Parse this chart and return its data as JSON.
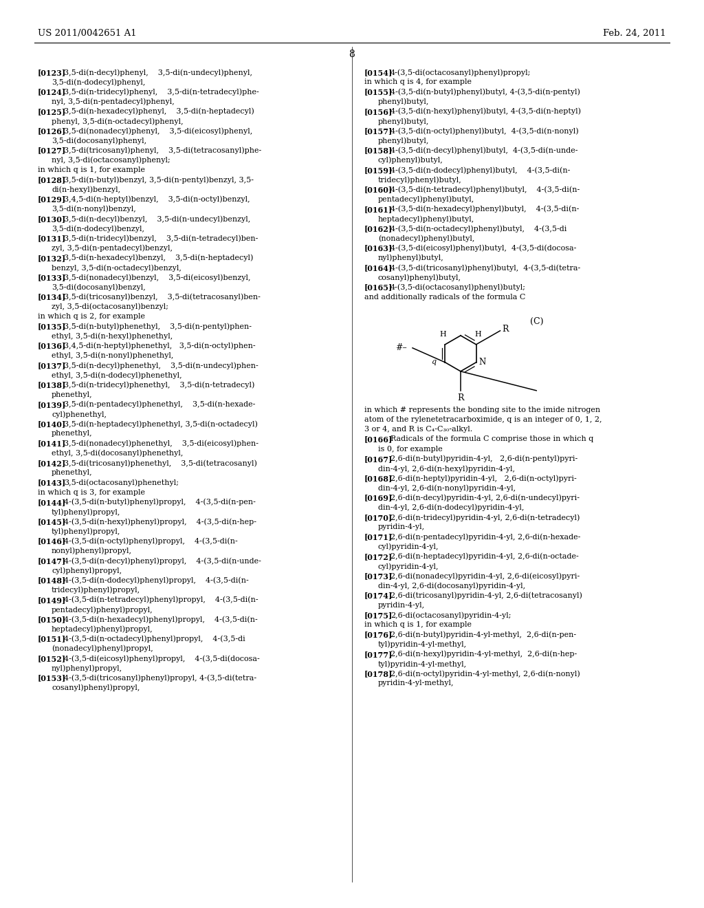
{
  "header_left": "US 2011/0042651 A1",
  "header_right": "Feb. 24, 2011",
  "page_number": "8",
  "background_color": "#ffffff",
  "text_color": "#000000",
  "left_col": [
    {
      "tag": "[0123]",
      "lines": [
        "3,5-di(n-decyl)phenyl,    3,5-di(n-undecyl)phenyl,",
        "3,5-di(n-dodecyl)phenyl,"
      ]
    },
    {
      "tag": "[0124]",
      "lines": [
        "3,5-di(n-tridecyl)phenyl,    3,5-di(n-tetradecyl)phe-",
        "nyl, 3,5-di(n-pentadecyl)phenyl,"
      ]
    },
    {
      "tag": "[0125]",
      "lines": [
        "3,5-di(n-hexadecyl)phenyl,    3,5-di(n-heptadecyl)",
        "phenyl, 3,5-di(n-octadecyl)phenyl,"
      ]
    },
    {
      "tag": "[0126]",
      "lines": [
        "3,5-di(nonadecyl)phenyl,    3,5-di(eicosyl)phenyl,",
        "3,5-di(docosanyl)phenyl,"
      ]
    },
    {
      "tag": "[0127]",
      "lines": [
        "3,5-di(tricosanyl)phenyl,    3,5-di(tetracosanyl)phe-",
        "nyl, 3,5-di(octacosanyl)phenyl;"
      ]
    },
    {
      "tag": "",
      "lines": [
        "in which q is 1, for example"
      ]
    },
    {
      "tag": "[0128]",
      "lines": [
        "3,5-di(n-butyl)benzyl, 3,5-di(n-pentyl)benzyl, 3,5-",
        "di(n-hexyl)benzyl,"
      ]
    },
    {
      "tag": "[0129]",
      "lines": [
        "3,4,5-di(n-heptyl)benzyl,    3,5-di(n-octyl)benzyl,",
        "3,5-di(n-nonyl)benzyl,"
      ]
    },
    {
      "tag": "[0130]",
      "lines": [
        "3,5-di(n-decyl)benzyl,    3,5-di(n-undecyl)benzyl,",
        "3,5-di(n-dodecyl)benzyl,"
      ]
    },
    {
      "tag": "[0131]",
      "lines": [
        "3,5-di(n-tridecyl)benzyl,    3,5-di(n-tetradecyl)ben-",
        "zyl, 3,5-di(n-pentadecyl)benzyl,"
      ]
    },
    {
      "tag": "[0132]",
      "lines": [
        "3,5-di(n-hexadecyl)benzyl,    3,5-di(n-heptadecyl)",
        "benzyl, 3,5-di(n-octadecyl)benzyl,"
      ]
    },
    {
      "tag": "[0133]",
      "lines": [
        "3,5-di(nonadecyl)benzyl,    3,5-di(eicosyl)benzyl,",
        "3,5-di(docosanyl)benzyl,"
      ]
    },
    {
      "tag": "[0134]",
      "lines": [
        "3,5-di(tricosanyl)benzyl,    3,5-di(tetracosanyl)ben-",
        "zyl, 3,5-di(octacosanyl)benzyl;"
      ]
    },
    {
      "tag": "",
      "lines": [
        "in which q is 2, for example"
      ]
    },
    {
      "tag": "[0135]",
      "lines": [
        "3,5-di(n-butyl)phenethyl,    3,5-di(n-pentyl)phen-",
        "ethyl, 3,5-di(n-hexyl)phenethyl,"
      ]
    },
    {
      "tag": "[0136]",
      "lines": [
        "3,4,5-di(n-heptyl)phenethyl,   3,5-di(n-octyl)phen-",
        "ethyl, 3,5-di(n-nonyl)phenethyl,"
      ]
    },
    {
      "tag": "[0137]",
      "lines": [
        "3,5-di(n-decyl)phenethyl,    3,5-di(n-undecyl)phen-",
        "ethyl, 3,5-di(n-dodecyl)phenethyl,"
      ]
    },
    {
      "tag": "[0138]",
      "lines": [
        "3,5-di(n-tridecyl)phenethyl,    3,5-di(n-tetradecyl)",
        "phenethyl,"
      ]
    },
    {
      "tag": "[0139]",
      "lines": [
        "3,5-di(n-pentadecyl)phenethyl,    3,5-di(n-hexade-",
        "cyl)phenethyl,"
      ]
    },
    {
      "tag": "[0140]",
      "lines": [
        "3,5-di(n-heptadecyl)phenethyl, 3,5-di(n-octadecyl)",
        "phenethyl,"
      ]
    },
    {
      "tag": "[0141]",
      "lines": [
        "3,5-di(nonadecyl)phenethyl,    3,5-di(eicosyl)phen-",
        "ethyl, 3,5-di(docosanyl)phenethyl,"
      ]
    },
    {
      "tag": "[0142]",
      "lines": [
        "3,5-di(tricosanyl)phenethyl,    3,5-di(tetracosanyl)",
        "phenethyl,"
      ]
    },
    {
      "tag": "[0143]",
      "lines": [
        "3,5-di(octacosanyl)phenethyl;"
      ]
    },
    {
      "tag": "",
      "lines": [
        "in which q is 3, for example"
      ]
    },
    {
      "tag": "[0144]",
      "lines": [
        "4-(3,5-di(n-butyl)phenyl)propyl,    4-(3,5-di(n-pen-",
        "tyl)phenyl)propyl,"
      ]
    },
    {
      "tag": "[0145]",
      "lines": [
        "4-(3,5-di(n-hexyl)phenyl)propyl,    4-(3,5-di(n-hep-",
        "tyl)phenyl)propyl,"
      ]
    },
    {
      "tag": "[0146]",
      "lines": [
        "4-(3,5-di(n-octyl)phenyl)propyl,    4-(3,5-di(n-",
        "nonyl)phenyl)propyl,"
      ]
    },
    {
      "tag": "[0147]",
      "lines": [
        "4-(3,5-di(n-decyl)phenyl)propyl,    4-(3,5-di(n-unde-",
        "cyl)phenyl)propyl,"
      ]
    },
    {
      "tag": "[0148]",
      "lines": [
        "4-(3,5-di(n-dodecyl)phenyl)propyl,    4-(3,5-di(n-",
        "tridecyl)phenyl)propyl,"
      ]
    },
    {
      "tag": "[0149]",
      "lines": [
        "4-(3,5-di(n-tetradecyl)phenyl)propyl,    4-(3,5-di(n-",
        "pentadecyl)phenyl)propyl,"
      ]
    },
    {
      "tag": "[0150]",
      "lines": [
        "4-(3,5-di(n-hexadecyl)phenyl)propyl,    4-(3,5-di(n-",
        "heptadecyl)phenyl)propyl,"
      ]
    },
    {
      "tag": "[0151]",
      "lines": [
        "4-(3,5-di(n-octadecyl)phenyl)propyl,    4-(3,5-di",
        "(nonadecyl)phenyl)propyl,"
      ]
    },
    {
      "tag": "[0152]",
      "lines": [
        "4-(3,5-di(eicosyl)phenyl)propyl,    4-(3,5-di(docosa-",
        "nyl)phenyl)propyl,"
      ]
    },
    {
      "tag": "[0153]",
      "lines": [
        "4-(3,5-di(tricosanyl)phenyl)propyl, 4-(3,5-di(tetra-",
        "cosanyl)phenyl)propyl,"
      ]
    }
  ],
  "right_col": [
    {
      "tag": "[0154]",
      "lines": [
        "4-(3,5-di(octacosanyl)phenyl)propyl;"
      ]
    },
    {
      "tag": "",
      "lines": [
        "in which q is 4, for example"
      ]
    },
    {
      "tag": "[0155]",
      "lines": [
        "4-(3,5-di(n-butyl)phenyl)butyl, 4-(3,5-di(n-pentyl)",
        "phenyl)butyl,"
      ]
    },
    {
      "tag": "[0156]",
      "lines": [
        "4-(3,5-di(n-hexyl)phenyl)butyl, 4-(3,5-di(n-heptyl)",
        "phenyl)butyl,"
      ]
    },
    {
      "tag": "[0157]",
      "lines": [
        "4-(3,5-di(n-octyl)phenyl)butyl,  4-(3,5-di(n-nonyl)",
        "phenyl)butyl,"
      ]
    },
    {
      "tag": "[0158]",
      "lines": [
        "4-(3,5-di(n-decyl)phenyl)butyl,  4-(3,5-di(n-unde-",
        "cyl)phenyl)butyl,"
      ]
    },
    {
      "tag": "[0159]",
      "lines": [
        "4-(3,5-di(n-dodecyl)phenyl)butyl,    4-(3,5-di(n-",
        "tridecyl)phenyl)butyl,"
      ]
    },
    {
      "tag": "[0160]",
      "lines": [
        "4-(3,5-di(n-tetradecyl)phenyl)butyl,    4-(3,5-di(n-",
        "pentadecyl)phenyl)butyl,"
      ]
    },
    {
      "tag": "[0161]",
      "lines": [
        "4-(3,5-di(n-hexadecyl)phenyl)butyl,    4-(3,5-di(n-",
        "heptadecyl)phenyl)butyl,"
      ]
    },
    {
      "tag": "[0162]",
      "lines": [
        "4-(3,5-di(n-octadecyl)phenyl)butyl,    4-(3,5-di",
        "(nonadecyl)phenyl)butyl,"
      ]
    },
    {
      "tag": "[0163]",
      "lines": [
        "4-(3,5-di(eicosyl)phenyl)butyl,  4-(3,5-di(docosa-",
        "nyl)phenyl)butyl,"
      ]
    },
    {
      "tag": "[0164]",
      "lines": [
        "4-(3,5-di(tricosanyl)phenyl)butyl,  4-(3,5-di(tetra-",
        "cosanyl)phenyl)butyl,"
      ]
    },
    {
      "tag": "[0165]",
      "lines": [
        "4-(3,5-di(octacosanyl)phenyl)butyl;"
      ]
    },
    {
      "tag": "",
      "lines": [
        "and additionally radicals of the formula C"
      ]
    },
    {
      "tag": "FORMULA_C",
      "lines": []
    },
    {
      "tag": "",
      "lines": [
        "in which # represents the bonding site to the imide nitrogen",
        "atom of the rylenetetracarboximide, q is an integer of 0, 1, 2,",
        "3 or 4, and R is C₄-C₃₀-alkyl."
      ]
    },
    {
      "tag": "[0166]",
      "lines": [
        "Radicals of the formula C comprise those in which q",
        "is 0, for example"
      ]
    },
    {
      "tag": "[0167]",
      "lines": [
        "2,6-di(n-butyl)pyridin-4-yl,   2,6-di(n-pentyl)pyri-",
        "din-4-yl, 2,6-di(n-hexyl)pyridin-4-yl,"
      ]
    },
    {
      "tag": "[0168]",
      "lines": [
        "2,6-di(n-heptyl)pyridin-4-yl,   2,6-di(n-octyl)pyri-",
        "din-4-yl, 2,6-di(n-nonyl)pyridin-4-yl,"
      ]
    },
    {
      "tag": "[0169]",
      "lines": [
        "2,6-di(n-decyl)pyridin-4-yl, 2,6-di(n-undecyl)pyri-",
        "din-4-yl, 2,6-di(n-dodecyl)pyridin-4-yl,"
      ]
    },
    {
      "tag": "[0170]",
      "lines": [
        "2,6-di(n-tridecyl)pyridin-4-yl, 2,6-di(n-tetradecyl)",
        "pyridin-4-yl,"
      ]
    },
    {
      "tag": "[0171]",
      "lines": [
        "2,6-di(n-pentadecyl)pyridin-4-yl, 2,6-di(n-hexade-",
        "cyl)pyridin-4-yl,"
      ]
    },
    {
      "tag": "[0172]",
      "lines": [
        "2,6-di(n-heptadecyl)pyridin-4-yl, 2,6-di(n-octade-",
        "cyl)pyridin-4-yl,"
      ]
    },
    {
      "tag": "[0173]",
      "lines": [
        "2,6-di(nonadecyl)pyridin-4-yl, 2,6-di(eicosyl)pyri-",
        "din-4-yl, 2,6-di(docosanyl)pyridin-4-yl,"
      ]
    },
    {
      "tag": "[0174]",
      "lines": [
        "2,6-di(tricosanyl)pyridin-4-yl, 2,6-di(tetracosanyl)",
        "pyridin-4-yl,"
      ]
    },
    {
      "tag": "[0175]",
      "lines": [
        "2,6-di(octacosanyl)pyridin-4-yl;"
      ]
    },
    {
      "tag": "",
      "lines": [
        "in which q is 1, for example"
      ]
    },
    {
      "tag": "[0176]",
      "lines": [
        "2,6-di(n-butyl)pyridin-4-yl-methyl,  2,6-di(n-pen-",
        "tyl)pyridin-4-yl-methyl,"
      ]
    },
    {
      "tag": "[0177]",
      "lines": [
        "2,6-di(n-hexyl)pyridin-4-yl-methyl,  2,6-di(n-hep-",
        "tyl)pyridin-4-yl-methyl,"
      ]
    },
    {
      "tag": "[0178]",
      "lines": [
        "2,6-di(n-octyl)pyridin-4-yl-methyl, 2,6-di(n-nonyl)",
        "pyridin-4-yl-methyl,"
      ]
    }
  ]
}
